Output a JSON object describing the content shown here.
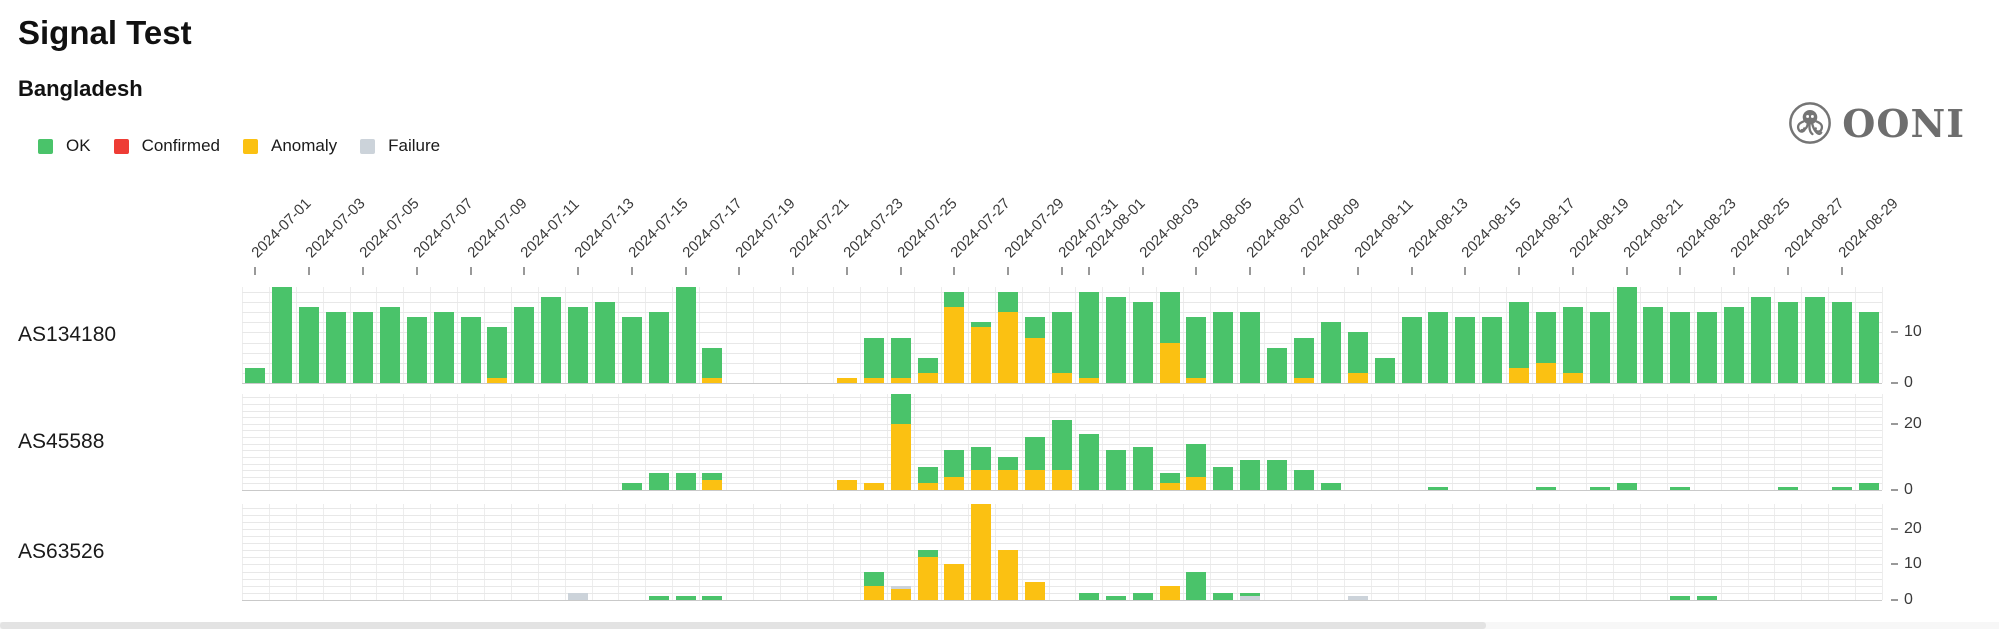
{
  "header": {
    "title": "Signal Test",
    "subtitle": "Bangladesh"
  },
  "logo": {
    "text": "OONI"
  },
  "legend": {
    "items": [
      {
        "key": "ok",
        "label": "OK",
        "color": "#4ac36a"
      },
      {
        "key": "confirmed",
        "label": "Confirmed",
        "color": "#ee3c35"
      },
      {
        "key": "anomaly",
        "label": "Anomaly",
        "color": "#fbc112"
      },
      {
        "key": "failure",
        "label": "Failure",
        "color": "#ccd3da"
      }
    ]
  },
  "chart_data": {
    "type": "bar",
    "stacked": true,
    "stack_order": [
      "anomaly",
      "failure",
      "ok"
    ],
    "grid": true,
    "gridline_step": 2,
    "legend_position": "top-left",
    "categories": [
      "2024-07-01",
      "2024-07-02",
      "2024-07-03",
      "2024-07-04",
      "2024-07-05",
      "2024-07-06",
      "2024-07-07",
      "2024-07-08",
      "2024-07-09",
      "2024-07-10",
      "2024-07-11",
      "2024-07-12",
      "2024-07-13",
      "2024-07-14",
      "2024-07-15",
      "2024-07-16",
      "2024-07-17",
      "2024-07-18",
      "2024-07-19",
      "2024-07-20",
      "2024-07-21",
      "2024-07-22",
      "2024-07-23",
      "2024-07-24",
      "2024-07-25",
      "2024-07-26",
      "2024-07-27",
      "2024-07-28",
      "2024-07-29",
      "2024-07-30",
      "2024-07-31",
      "2024-08-01",
      "2024-08-02",
      "2024-08-03",
      "2024-08-04",
      "2024-08-05",
      "2024-08-06",
      "2024-08-07",
      "2024-08-08",
      "2024-08-09",
      "2024-08-10",
      "2024-08-11",
      "2024-08-12",
      "2024-08-13",
      "2024-08-14",
      "2024-08-15",
      "2024-08-16",
      "2024-08-17",
      "2024-08-18",
      "2024-08-19",
      "2024-08-20",
      "2024-08-21",
      "2024-08-22",
      "2024-08-23",
      "2024-08-24",
      "2024-08-25",
      "2024-08-26",
      "2024-08-27",
      "2024-08-28",
      "2024-08-29",
      "2024-08-30"
    ],
    "tick_labels": [
      "2024-07-01",
      "2024-07-03",
      "2024-07-05",
      "2024-07-07",
      "2024-07-09",
      "2024-07-11",
      "2024-07-13",
      "2024-07-15",
      "2024-07-17",
      "2024-07-19",
      "2024-07-21",
      "2024-07-23",
      "2024-07-25",
      "2024-07-27",
      "2024-07-29",
      "2024-07-31",
      "2024-08-01",
      "2024-08-03",
      "2024-08-05",
      "2024-08-07",
      "2024-08-09",
      "2024-08-11",
      "2024-08-13",
      "2024-08-15",
      "2024-08-17",
      "2024-08-19",
      "2024-08-21",
      "2024-08-23",
      "2024-08-25",
      "2024-08-27",
      "2024-08-29"
    ],
    "rows": [
      {
        "label": "AS134180",
        "ylim": 19,
        "yticks": [
          0,
          10
        ],
        "series": {
          "ok": [
            3,
            19,
            15,
            14,
            14,
            15,
            13,
            14,
            13,
            10,
            15,
            17,
            15,
            16,
            13,
            14,
            19,
            6,
            0,
            0,
            0,
            0,
            0,
            8,
            8,
            3,
            3,
            1,
            4,
            4,
            12,
            17,
            17,
            16,
            10,
            12,
            14,
            14,
            7,
            8,
            12,
            8,
            5,
            13,
            14,
            13,
            13,
            13,
            10,
            13,
            14,
            19,
            15,
            14,
            14,
            15,
            17,
            16,
            17,
            16,
            14
          ],
          "anomaly": [
            0,
            0,
            0,
            0,
            0,
            0,
            0,
            0,
            0,
            1,
            0,
            0,
            0,
            0,
            0,
            0,
            0,
            1,
            0,
            0,
            0,
            0,
            1,
            1,
            1,
            2,
            15,
            11,
            14,
            9,
            2,
            1,
            0,
            0,
            8,
            1,
            0,
            0,
            0,
            1,
            0,
            2,
            0,
            0,
            0,
            0,
            0,
            3,
            4,
            2,
            0,
            0,
            0,
            0,
            0,
            0,
            0,
            0,
            0,
            0,
            0
          ],
          "failure": [
            0,
            0,
            0,
            0,
            0,
            0,
            0,
            0,
            0,
            0,
            0,
            0,
            0,
            0,
            0,
            0,
            0,
            0,
            0,
            0,
            0,
            0,
            0,
            0,
            0,
            0,
            0,
            0,
            0,
            0,
            0,
            0,
            0,
            0,
            0,
            0,
            0,
            0,
            0,
            0,
            0,
            0,
            0,
            0,
            0,
            0,
            0,
            0,
            0,
            0,
            0,
            0,
            0,
            0,
            0,
            0,
            0,
            0,
            0,
            0,
            0
          ]
        }
      },
      {
        "label": "AS45588",
        "ylim": 29,
        "yticks": [
          0,
          20
        ],
        "series": {
          "ok": [
            0,
            0,
            0,
            0,
            0,
            0,
            0,
            0,
            0,
            0,
            0,
            0,
            0,
            0,
            2,
            5,
            5,
            2,
            0,
            0,
            0,
            0,
            0,
            0,
            9,
            5,
            8,
            7,
            4,
            10,
            15,
            17,
            12,
            13,
            3,
            10,
            7,
            9,
            9,
            6,
            2,
            0,
            0,
            0,
            1,
            0,
            0,
            0,
            1,
            0,
            1,
            2,
            0,
            1,
            0,
            0,
            0,
            1,
            0,
            1,
            2
          ],
          "anomaly": [
            0,
            0,
            0,
            0,
            0,
            0,
            0,
            0,
            0,
            0,
            0,
            0,
            0,
            0,
            0,
            0,
            0,
            3,
            0,
            0,
            0,
            0,
            3,
            2,
            20,
            2,
            4,
            6,
            6,
            6,
            6,
            0,
            0,
            0,
            2,
            4,
            0,
            0,
            0,
            0,
            0,
            0,
            0,
            0,
            0,
            0,
            0,
            0,
            0,
            0,
            0,
            0,
            0,
            0,
            0,
            0,
            0,
            0,
            0,
            0,
            0
          ],
          "failure": [
            0,
            0,
            0,
            0,
            0,
            0,
            0,
            0,
            0,
            0,
            0,
            0,
            0,
            0,
            0,
            0,
            0,
            0,
            0,
            0,
            0,
            0,
            0,
            0,
            0,
            0,
            0,
            0,
            0,
            0,
            0,
            0,
            0,
            0,
            0,
            0,
            0,
            0,
            0,
            0,
            0,
            0,
            0,
            0,
            0,
            0,
            0,
            0,
            0,
            0,
            0,
            0,
            0,
            0,
            0,
            0,
            0,
            0,
            0,
            0,
            0
          ]
        }
      },
      {
        "label": "AS63526",
        "ylim": 27,
        "yticks": [
          0,
          10,
          20
        ],
        "series": {
          "ok": [
            0,
            0,
            0,
            0,
            0,
            0,
            0,
            0,
            0,
            0,
            0,
            0,
            0,
            0,
            0,
            1,
            1,
            1,
            0,
            0,
            0,
            0,
            0,
            4,
            0,
            2,
            0,
            0,
            0,
            0,
            0,
            2,
            1,
            2,
            0,
            8,
            2,
            1,
            0,
            0,
            0,
            0,
            0,
            0,
            0,
            0,
            0,
            0,
            0,
            0,
            0,
            0,
            0,
            1,
            1,
            0,
            0,
            0,
            0,
            0,
            0
          ],
          "anomaly": [
            0,
            0,
            0,
            0,
            0,
            0,
            0,
            0,
            0,
            0,
            0,
            0,
            0,
            0,
            0,
            0,
            0,
            0,
            0,
            0,
            0,
            0,
            0,
            4,
            3,
            12,
            10,
            27,
            14,
            5,
            0,
            0,
            0,
            0,
            4,
            0,
            0,
            0,
            0,
            0,
            0,
            0,
            0,
            0,
            0,
            0,
            0,
            0,
            0,
            0,
            0,
            0,
            0,
            0,
            0,
            0,
            0,
            0,
            0,
            0,
            0
          ],
          "failure": [
            0,
            0,
            0,
            0,
            0,
            0,
            0,
            0,
            0,
            0,
            0,
            0,
            2,
            0,
            0,
            0,
            0,
            0,
            0,
            0,
            0,
            0,
            0,
            0,
            1,
            0,
            0,
            0,
            0,
            0,
            0,
            0,
            0,
            0,
            0,
            0,
            0,
            1,
            0,
            0,
            0,
            1,
            0,
            0,
            0,
            0,
            0,
            0,
            0,
            0,
            0,
            0,
            0,
            0,
            0,
            0,
            0,
            0,
            0,
            0,
            0
          ]
        }
      }
    ]
  }
}
